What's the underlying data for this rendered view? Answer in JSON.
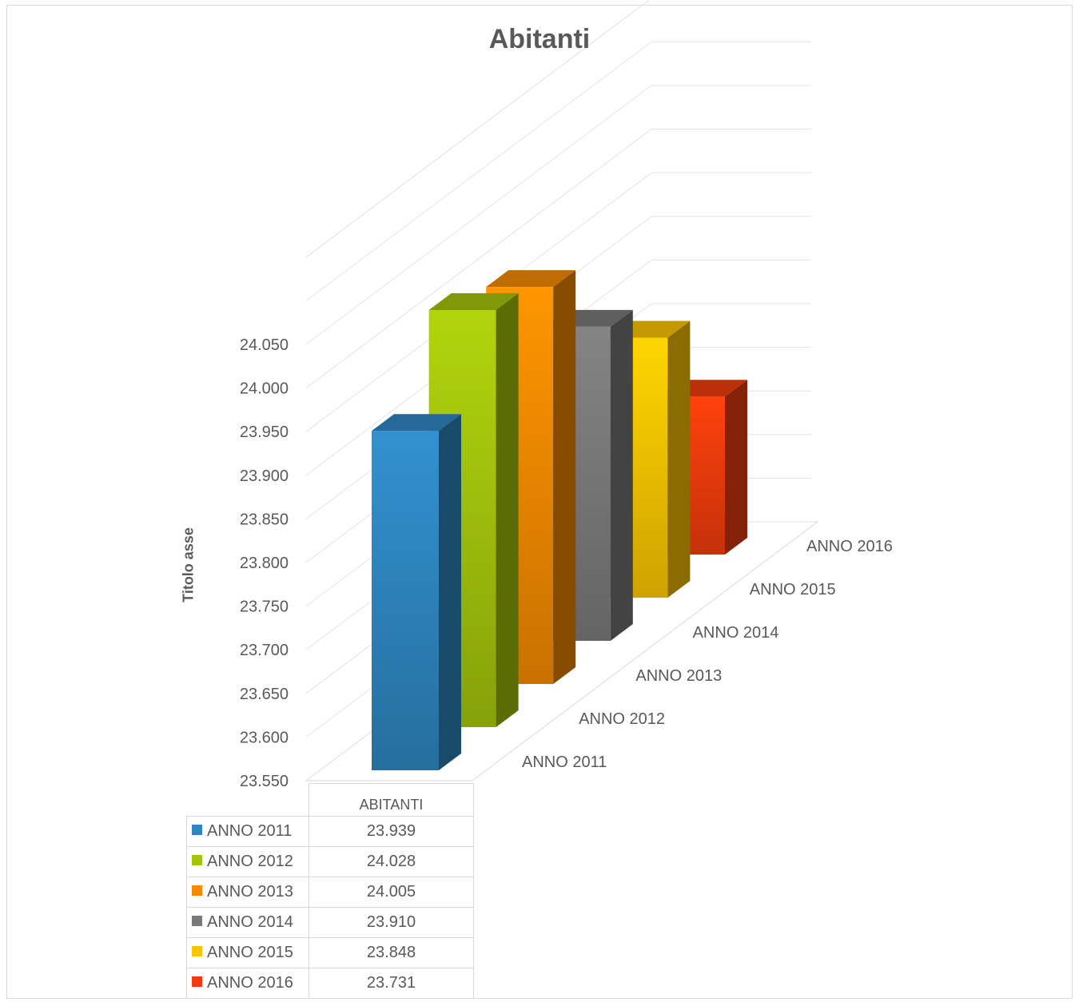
{
  "chart_data": {
    "type": "bar",
    "title": "Abitanti",
    "ylabel": "Titolo asse",
    "ylim": [
      23550,
      24050
    ],
    "yticks": [
      "23.550",
      "23.600",
      "23.650",
      "23.700",
      "23.750",
      "23.800",
      "23.850",
      "23.900",
      "23.950",
      "24.000",
      "24.050"
    ],
    "category_header": "ABITANTI",
    "depth_labels": [
      "ANNO 2011",
      "ANNO 2012",
      "ANNO 2013",
      "ANNO 2014",
      "ANNO 2015",
      "ANNO 2016"
    ],
    "series": [
      {
        "name": "ANNO 2011",
        "value": 23939,
        "label": "23.939",
        "color": "#2e86c1"
      },
      {
        "name": "ANNO 2012",
        "value": 24028,
        "label": "24.028",
        "color": "#a5c40c"
      },
      {
        "name": "ANNO 2013",
        "value": 24005,
        "label": "24.005",
        "color": "#f58a00"
      },
      {
        "name": "ANNO 2014",
        "value": 23910,
        "label": "23.910",
        "color": "#7a7a7a"
      },
      {
        "name": "ANNO 2015",
        "value": 23848,
        "label": "23.848",
        "color": "#fcc500"
      },
      {
        "name": "ANNO 2016",
        "value": 23731,
        "label": "23.731",
        "color": "#f03c0c"
      }
    ]
  }
}
